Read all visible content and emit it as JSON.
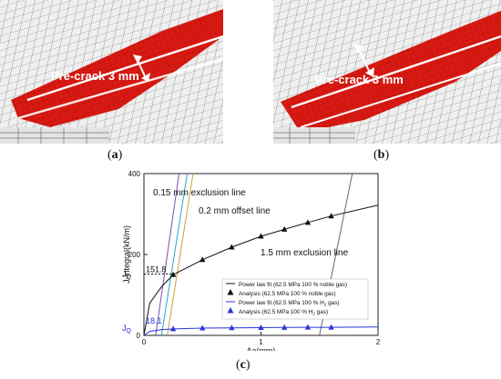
{
  "panel_a": {
    "label": "Pre-crack 3 mm",
    "caption_letter": "a"
  },
  "panel_b": {
    "label": "Pre-crack 3 mm",
    "caption_letter": "b"
  },
  "panel_c": {
    "caption_letter": "c"
  },
  "colors": {
    "crack_red": "#d91a12",
    "mesh_line": "#7a7a7a",
    "noble": "#111111",
    "hydrogen": "#2a36d6"
  },
  "chart_data": {
    "type": "line",
    "xlabel": "Δa(mm)",
    "ylabel": "J-integral(kN/m)",
    "xlim": [
      0,
      2
    ],
    "ylim": [
      0,
      400
    ],
    "xticks": [
      "0",
      "1",
      "2"
    ],
    "yticks": [
      "0",
      "200",
      "400"
    ],
    "annotations": {
      "exclusion_015": "0.15 mm exclusion line",
      "offset_02": "0.2 mm offset line",
      "exclusion_15": "1.5 mm exclusion line",
      "jq_noble_value": "151.8",
      "jq_h2_value": "18.1",
      "jq_symbol": "J",
      "jq_sub": "Q"
    },
    "legend": [
      {
        "text": "Power law fit (62.5 MPa 100 % noble gas)",
        "marker": "line",
        "color": "#111111"
      },
      {
        "text": "Analysis (62.5 MPa 100 % noble gas)",
        "marker": "triangle",
        "color": "#111111"
      },
      {
        "text_pre": "Power law fit (62.5 MPa 100 % H",
        "text_sub": "2",
        "text_post": " gas)",
        "marker": "line",
        "color": "#2a36d6"
      },
      {
        "text_pre": "Analysis (62.5 MPa 100 % H",
        "text_sub": "2",
        "text_post": " gas)",
        "marker": "triangle",
        "color": "#2a36d6"
      }
    ],
    "series": [
      {
        "name": "Analysis (62.5 MPa 100 % noble gas)",
        "x": [
          0.25,
          0.5,
          0.75,
          1.0,
          1.2,
          1.4,
          1.6
        ],
        "y": [
          150,
          187,
          218,
          245,
          262,
          279,
          295
        ]
      },
      {
        "name": "Analysis (62.5 MPa 100 % H2 gas)",
        "x": [
          0.25,
          0.5,
          0.75,
          1.0,
          1.2,
          1.4,
          1.6
        ],
        "y": [
          16,
          18,
          18.5,
          19,
          19.5,
          20,
          20
        ]
      }
    ],
    "construction_lines": [
      {
        "x": [
          0.1,
          0.3
        ],
        "y": [
          0,
          400
        ],
        "color": "#7a4fb0"
      },
      {
        "x": [
          0.15,
          0.37
        ],
        "y": [
          0,
          400
        ],
        "color": "#2fa3c7"
      },
      {
        "x": [
          0.2,
          0.42
        ],
        "y": [
          0,
          400
        ],
        "color": "#c9a23a"
      },
      {
        "x": [
          1.5,
          1.78
        ],
        "y": [
          0,
          400
        ],
        "color": "#666666"
      }
    ]
  }
}
